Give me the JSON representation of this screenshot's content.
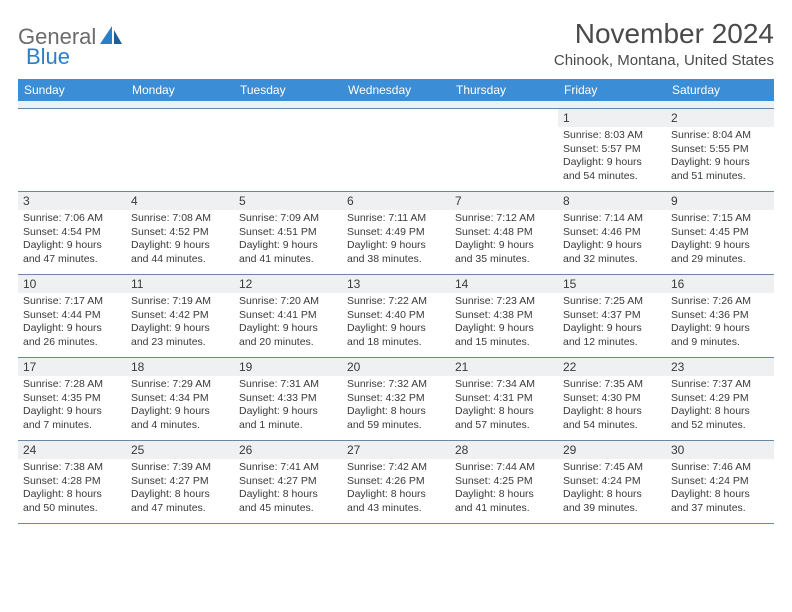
{
  "logo": {
    "text1": "General",
    "text2": "Blue",
    "sail_color": "#2a7fc9"
  },
  "title": "November 2024",
  "location": "Chinook, Montana, United States",
  "header_bg": "#3b8dd6",
  "header_fg": "#ffffff",
  "shade_bg": "#eef0f1",
  "border_color": "#6a87a8",
  "day_names": [
    "Sunday",
    "Monday",
    "Tuesday",
    "Wednesday",
    "Thursday",
    "Friday",
    "Saturday"
  ],
  "weeks": [
    [
      {
        "empty": true
      },
      {
        "empty": true
      },
      {
        "empty": true
      },
      {
        "empty": true
      },
      {
        "empty": true
      },
      {
        "day": "1",
        "sunrise": "8:03 AM",
        "sunset": "5:57 PM",
        "daylight": "9 hours and 54 minutes."
      },
      {
        "day": "2",
        "sunrise": "8:04 AM",
        "sunset": "5:55 PM",
        "daylight": "9 hours and 51 minutes."
      }
    ],
    [
      {
        "day": "3",
        "sunrise": "7:06 AM",
        "sunset": "4:54 PM",
        "daylight": "9 hours and 47 minutes."
      },
      {
        "day": "4",
        "sunrise": "7:08 AM",
        "sunset": "4:52 PM",
        "daylight": "9 hours and 44 minutes."
      },
      {
        "day": "5",
        "sunrise": "7:09 AM",
        "sunset": "4:51 PM",
        "daylight": "9 hours and 41 minutes."
      },
      {
        "day": "6",
        "sunrise": "7:11 AM",
        "sunset": "4:49 PM",
        "daylight": "9 hours and 38 minutes."
      },
      {
        "day": "7",
        "sunrise": "7:12 AM",
        "sunset": "4:48 PM",
        "daylight": "9 hours and 35 minutes."
      },
      {
        "day": "8",
        "sunrise": "7:14 AM",
        "sunset": "4:46 PM",
        "daylight": "9 hours and 32 minutes."
      },
      {
        "day": "9",
        "sunrise": "7:15 AM",
        "sunset": "4:45 PM",
        "daylight": "9 hours and 29 minutes."
      }
    ],
    [
      {
        "day": "10",
        "sunrise": "7:17 AM",
        "sunset": "4:44 PM",
        "daylight": "9 hours and 26 minutes."
      },
      {
        "day": "11",
        "sunrise": "7:19 AM",
        "sunset": "4:42 PM",
        "daylight": "9 hours and 23 minutes."
      },
      {
        "day": "12",
        "sunrise": "7:20 AM",
        "sunset": "4:41 PM",
        "daylight": "9 hours and 20 minutes."
      },
      {
        "day": "13",
        "sunrise": "7:22 AM",
        "sunset": "4:40 PM",
        "daylight": "9 hours and 18 minutes."
      },
      {
        "day": "14",
        "sunrise": "7:23 AM",
        "sunset": "4:38 PM",
        "daylight": "9 hours and 15 minutes."
      },
      {
        "day": "15",
        "sunrise": "7:25 AM",
        "sunset": "4:37 PM",
        "daylight": "9 hours and 12 minutes."
      },
      {
        "day": "16",
        "sunrise": "7:26 AM",
        "sunset": "4:36 PM",
        "daylight": "9 hours and 9 minutes."
      }
    ],
    [
      {
        "day": "17",
        "sunrise": "7:28 AM",
        "sunset": "4:35 PM",
        "daylight": "9 hours and 7 minutes."
      },
      {
        "day": "18",
        "sunrise": "7:29 AM",
        "sunset": "4:34 PM",
        "daylight": "9 hours and 4 minutes."
      },
      {
        "day": "19",
        "sunrise": "7:31 AM",
        "sunset": "4:33 PM",
        "daylight": "9 hours and 1 minute."
      },
      {
        "day": "20",
        "sunrise": "7:32 AM",
        "sunset": "4:32 PM",
        "daylight": "8 hours and 59 minutes."
      },
      {
        "day": "21",
        "sunrise": "7:34 AM",
        "sunset": "4:31 PM",
        "daylight": "8 hours and 57 minutes."
      },
      {
        "day": "22",
        "sunrise": "7:35 AM",
        "sunset": "4:30 PM",
        "daylight": "8 hours and 54 minutes."
      },
      {
        "day": "23",
        "sunrise": "7:37 AM",
        "sunset": "4:29 PM",
        "daylight": "8 hours and 52 minutes."
      }
    ],
    [
      {
        "day": "24",
        "sunrise": "7:38 AM",
        "sunset": "4:28 PM",
        "daylight": "8 hours and 50 minutes."
      },
      {
        "day": "25",
        "sunrise": "7:39 AM",
        "sunset": "4:27 PM",
        "daylight": "8 hours and 47 minutes."
      },
      {
        "day": "26",
        "sunrise": "7:41 AM",
        "sunset": "4:27 PM",
        "daylight": "8 hours and 45 minutes."
      },
      {
        "day": "27",
        "sunrise": "7:42 AM",
        "sunset": "4:26 PM",
        "daylight": "8 hours and 43 minutes."
      },
      {
        "day": "28",
        "sunrise": "7:44 AM",
        "sunset": "4:25 PM",
        "daylight": "8 hours and 41 minutes."
      },
      {
        "day": "29",
        "sunrise": "7:45 AM",
        "sunset": "4:24 PM",
        "daylight": "8 hours and 39 minutes."
      },
      {
        "day": "30",
        "sunrise": "7:46 AM",
        "sunset": "4:24 PM",
        "daylight": "8 hours and 37 minutes."
      }
    ]
  ]
}
